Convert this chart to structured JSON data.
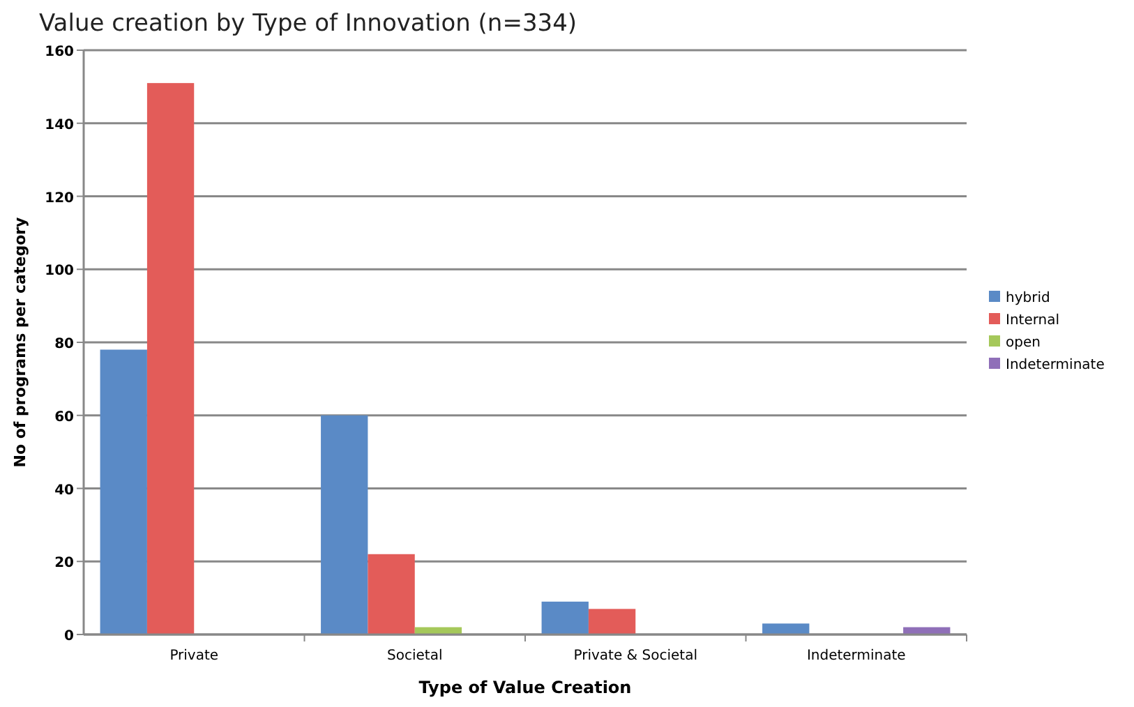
{
  "chart_data": {
    "type": "bar",
    "title": "Value creation by Type of Innovation (n=334)",
    "xlabel": "Type of Value Creation",
    "ylabel": "No of programs per category",
    "categories": [
      "Private",
      "Societal",
      "Private & Societal",
      "Indeterminate"
    ],
    "series": [
      {
        "name": "hybrid",
        "color": "#5a8ac6",
        "values": [
          78,
          60,
          9,
          3
        ]
      },
      {
        "name": "Internal",
        "color": "#e35c59",
        "values": [
          151,
          22,
          7,
          0
        ]
      },
      {
        "name": "open",
        "color": "#a5c85a",
        "values": [
          0,
          2,
          0,
          0
        ]
      },
      {
        "name": "Indeterminate",
        "color": "#8f6fb8",
        "values": [
          0,
          0,
          0,
          2
        ]
      }
    ],
    "ylim": [
      0,
      160
    ],
    "yticks": [
      0,
      20,
      40,
      60,
      80,
      100,
      120,
      140,
      160
    ],
    "grid": "y",
    "legend": "right"
  }
}
